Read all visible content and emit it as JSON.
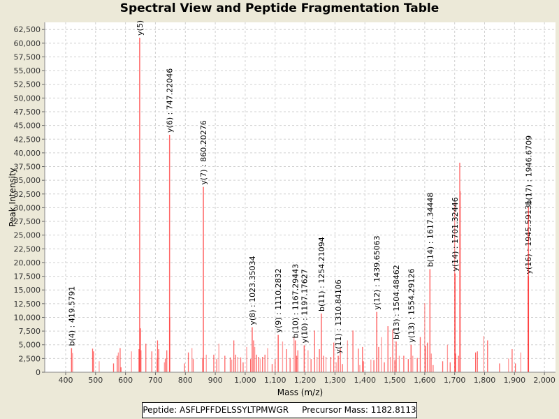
{
  "chart_data": {
    "type": "bar",
    "title": "Spectral View and Peptide Fragmentation Table",
    "xlabel": "Mass (m/z)",
    "ylabel": "Peak Intensity",
    "xlim": [
      330,
      2037
    ],
    "ylim": [
      0,
      63800
    ],
    "xticks": [
      400,
      500,
      600,
      700,
      800,
      900,
      1000,
      1100,
      1200,
      1300,
      1400,
      1500,
      1600,
      1700,
      1800,
      1900,
      2000
    ],
    "xtick_labels": [
      "400",
      "500",
      "600",
      "700",
      "800",
      "900",
      "1,000",
      "1,100",
      "1,200",
      "1,300",
      "1,400",
      "1,500",
      "1,600",
      "1,700",
      "1,800",
      "1,900",
      "2,000"
    ],
    "yticks": [
      0,
      2500,
      5000,
      7500,
      10000,
      12500,
      15000,
      17500,
      20000,
      22500,
      25000,
      27500,
      30000,
      32500,
      35000,
      37500,
      40000,
      42500,
      45000,
      47500,
      50000,
      52500,
      55000,
      57500,
      60000,
      62500
    ],
    "ytick_labels": [
      "0",
      "2,500",
      "5,000",
      "7,500",
      "10,000",
      "12,500",
      "15,000",
      "17,500",
      "20,000",
      "22,500",
      "25,000",
      "27,500",
      "30,000",
      "32,500",
      "35,000",
      "37,500",
      "40,000",
      "42,500",
      "45,000",
      "47,500",
      "50,000",
      "52,500",
      "55,000",
      "57,500",
      "60,000",
      "62,500"
    ],
    "grid": true,
    "color": "#ff0000",
    "annotated_peaks": [
      {
        "mz": 419.58,
        "intensity": 4400,
        "label": "b(4) : 419.5791"
      },
      {
        "mz": 647.3,
        "intensity": 61000,
        "label": "y(5)"
      },
      {
        "mz": 747.22,
        "intensity": 43300,
        "label": "y(6) : 747.22046"
      },
      {
        "mz": 860.2,
        "intensity": 33800,
        "label": "y(7) : 860.20276"
      },
      {
        "mz": 1023.35,
        "intensity": 8200,
        "label": "y(8) : 1023.35034"
      },
      {
        "mz": 1110.28,
        "intensity": 6800,
        "label": "y(9) : 1110.2832"
      },
      {
        "mz": 1167.29,
        "intensity": 5800,
        "label": "b(10) : 1167.29443"
      },
      {
        "mz": 1197.18,
        "intensity": 4900,
        "label": "y(10) : 1197.17627"
      },
      {
        "mz": 1254.21,
        "intensity": 10700,
        "label": "b(11) : 1254.21094"
      },
      {
        "mz": 1310.84,
        "intensity": 3000,
        "label": "y(11) : 1310.84106"
      },
      {
        "mz": 1439.65,
        "intensity": 11000,
        "label": "y(12) : 1439.65063"
      },
      {
        "mz": 1504.48,
        "intensity": 5600,
        "label": "b(13) : 1504.48462"
      },
      {
        "mz": 1554.29,
        "intensity": 5000,
        "label": "y(13) : 1554.29126"
      },
      {
        "mz": 1617.34,
        "intensity": 18800,
        "label": "b(14) : 1617.34448"
      },
      {
        "mz": 1701.32,
        "intensity": 18000,
        "label": "y(14) : 1701.32446"
      },
      {
        "mz": 1945.59,
        "intensity": 17500,
        "label": "y(16) : 1945.59131"
      },
      {
        "mz": 1946.67,
        "intensity": 30100,
        "label": "b(17) : 1946.6709"
      }
    ],
    "other_peaks": [
      [
        423,
        3500
      ],
      [
        490,
        4300
      ],
      [
        493,
        3800
      ],
      [
        512,
        2000
      ],
      [
        560,
        1600
      ],
      [
        572,
        3000
      ],
      [
        576,
        3600
      ],
      [
        582,
        4400
      ],
      [
        585,
        900
      ],
      [
        620,
        3800
      ],
      [
        645,
        4200
      ],
      [
        650,
        8000
      ],
      [
        652,
        4000
      ],
      [
        668,
        5200
      ],
      [
        688,
        3800
      ],
      [
        705,
        2600
      ],
      [
        707,
        5800
      ],
      [
        711,
        4200
      ],
      [
        730,
        1800
      ],
      [
        733,
        2500
      ],
      [
        738,
        4000
      ],
      [
        748,
        10000
      ],
      [
        797,
        1600
      ],
      [
        810,
        3600
      ],
      [
        822,
        4400
      ],
      [
        826,
        2400
      ],
      [
        858,
        2600
      ],
      [
        870,
        3200
      ],
      [
        895,
        3200
      ],
      [
        905,
        2400
      ],
      [
        912,
        5200
      ],
      [
        932,
        3000
      ],
      [
        950,
        2700
      ],
      [
        955,
        2300
      ],
      [
        962,
        5800
      ],
      [
        968,
        3200
      ],
      [
        975,
        2800
      ],
      [
        985,
        2700
      ],
      [
        993,
        1800
      ],
      [
        1005,
        4600
      ],
      [
        1018,
        2400
      ],
      [
        1028,
        5800
      ],
      [
        1032,
        4600
      ],
      [
        1038,
        3200
      ],
      [
        1044,
        2800
      ],
      [
        1050,
        2400
      ],
      [
        1058,
        2800
      ],
      [
        1066,
        3200
      ],
      [
        1075,
        4400
      ],
      [
        1090,
        1500
      ],
      [
        1100,
        2400
      ],
      [
        1125,
        5600
      ],
      [
        1138,
        4200
      ],
      [
        1150,
        2600
      ],
      [
        1163,
        6500
      ],
      [
        1172,
        3000
      ],
      [
        1176,
        4000
      ],
      [
        1210,
        4000
      ],
      [
        1220,
        2400
      ],
      [
        1232,
        7600
      ],
      [
        1240,
        2800
      ],
      [
        1248,
        4200
      ],
      [
        1262,
        3000
      ],
      [
        1270,
        2800
      ],
      [
        1286,
        2800
      ],
      [
        1296,
        5400
      ],
      [
        1304,
        1800
      ],
      [
        1318,
        4400
      ],
      [
        1325,
        1500
      ],
      [
        1342,
        5800
      ],
      [
        1360,
        7600
      ],
      [
        1378,
        4300
      ],
      [
        1383,
        1300
      ],
      [
        1392,
        4600
      ],
      [
        1395,
        2000
      ],
      [
        1420,
        2300
      ],
      [
        1430,
        2200
      ],
      [
        1446,
        4600
      ],
      [
        1455,
        6400
      ],
      [
        1465,
        1800
      ],
      [
        1477,
        8400
      ],
      [
        1485,
        2800
      ],
      [
        1493,
        7800
      ],
      [
        1500,
        2200
      ],
      [
        1515,
        3000
      ],
      [
        1530,
        3000
      ],
      [
        1545,
        2400
      ],
      [
        1560,
        3000
      ],
      [
        1575,
        2600
      ],
      [
        1585,
        6400
      ],
      [
        1600,
        12600
      ],
      [
        1603,
        4800
      ],
      [
        1609,
        5400
      ],
      [
        1622,
        3400
      ],
      [
        1628,
        1300
      ],
      [
        1660,
        2000
      ],
      [
        1676,
        5000
      ],
      [
        1685,
        1800
      ],
      [
        1703,
        3400
      ],
      [
        1700,
        31000
      ],
      [
        1713,
        3000
      ],
      [
        1717,
        38200
      ],
      [
        1719,
        33000
      ],
      [
        1770,
        3600
      ],
      [
        1776,
        3800
      ],
      [
        1797,
        6600
      ],
      [
        1810,
        5800
      ],
      [
        1850,
        1600
      ],
      [
        1880,
        2500
      ],
      [
        1892,
        4200
      ],
      [
        1903,
        1600
      ],
      [
        1921,
        3600
      ]
    ]
  },
  "legend": {
    "peptide": "Peptide: ASFLPFFDELSSYLTPMWGR",
    "precursor": "Precursor Mass: 1182.8113"
  }
}
